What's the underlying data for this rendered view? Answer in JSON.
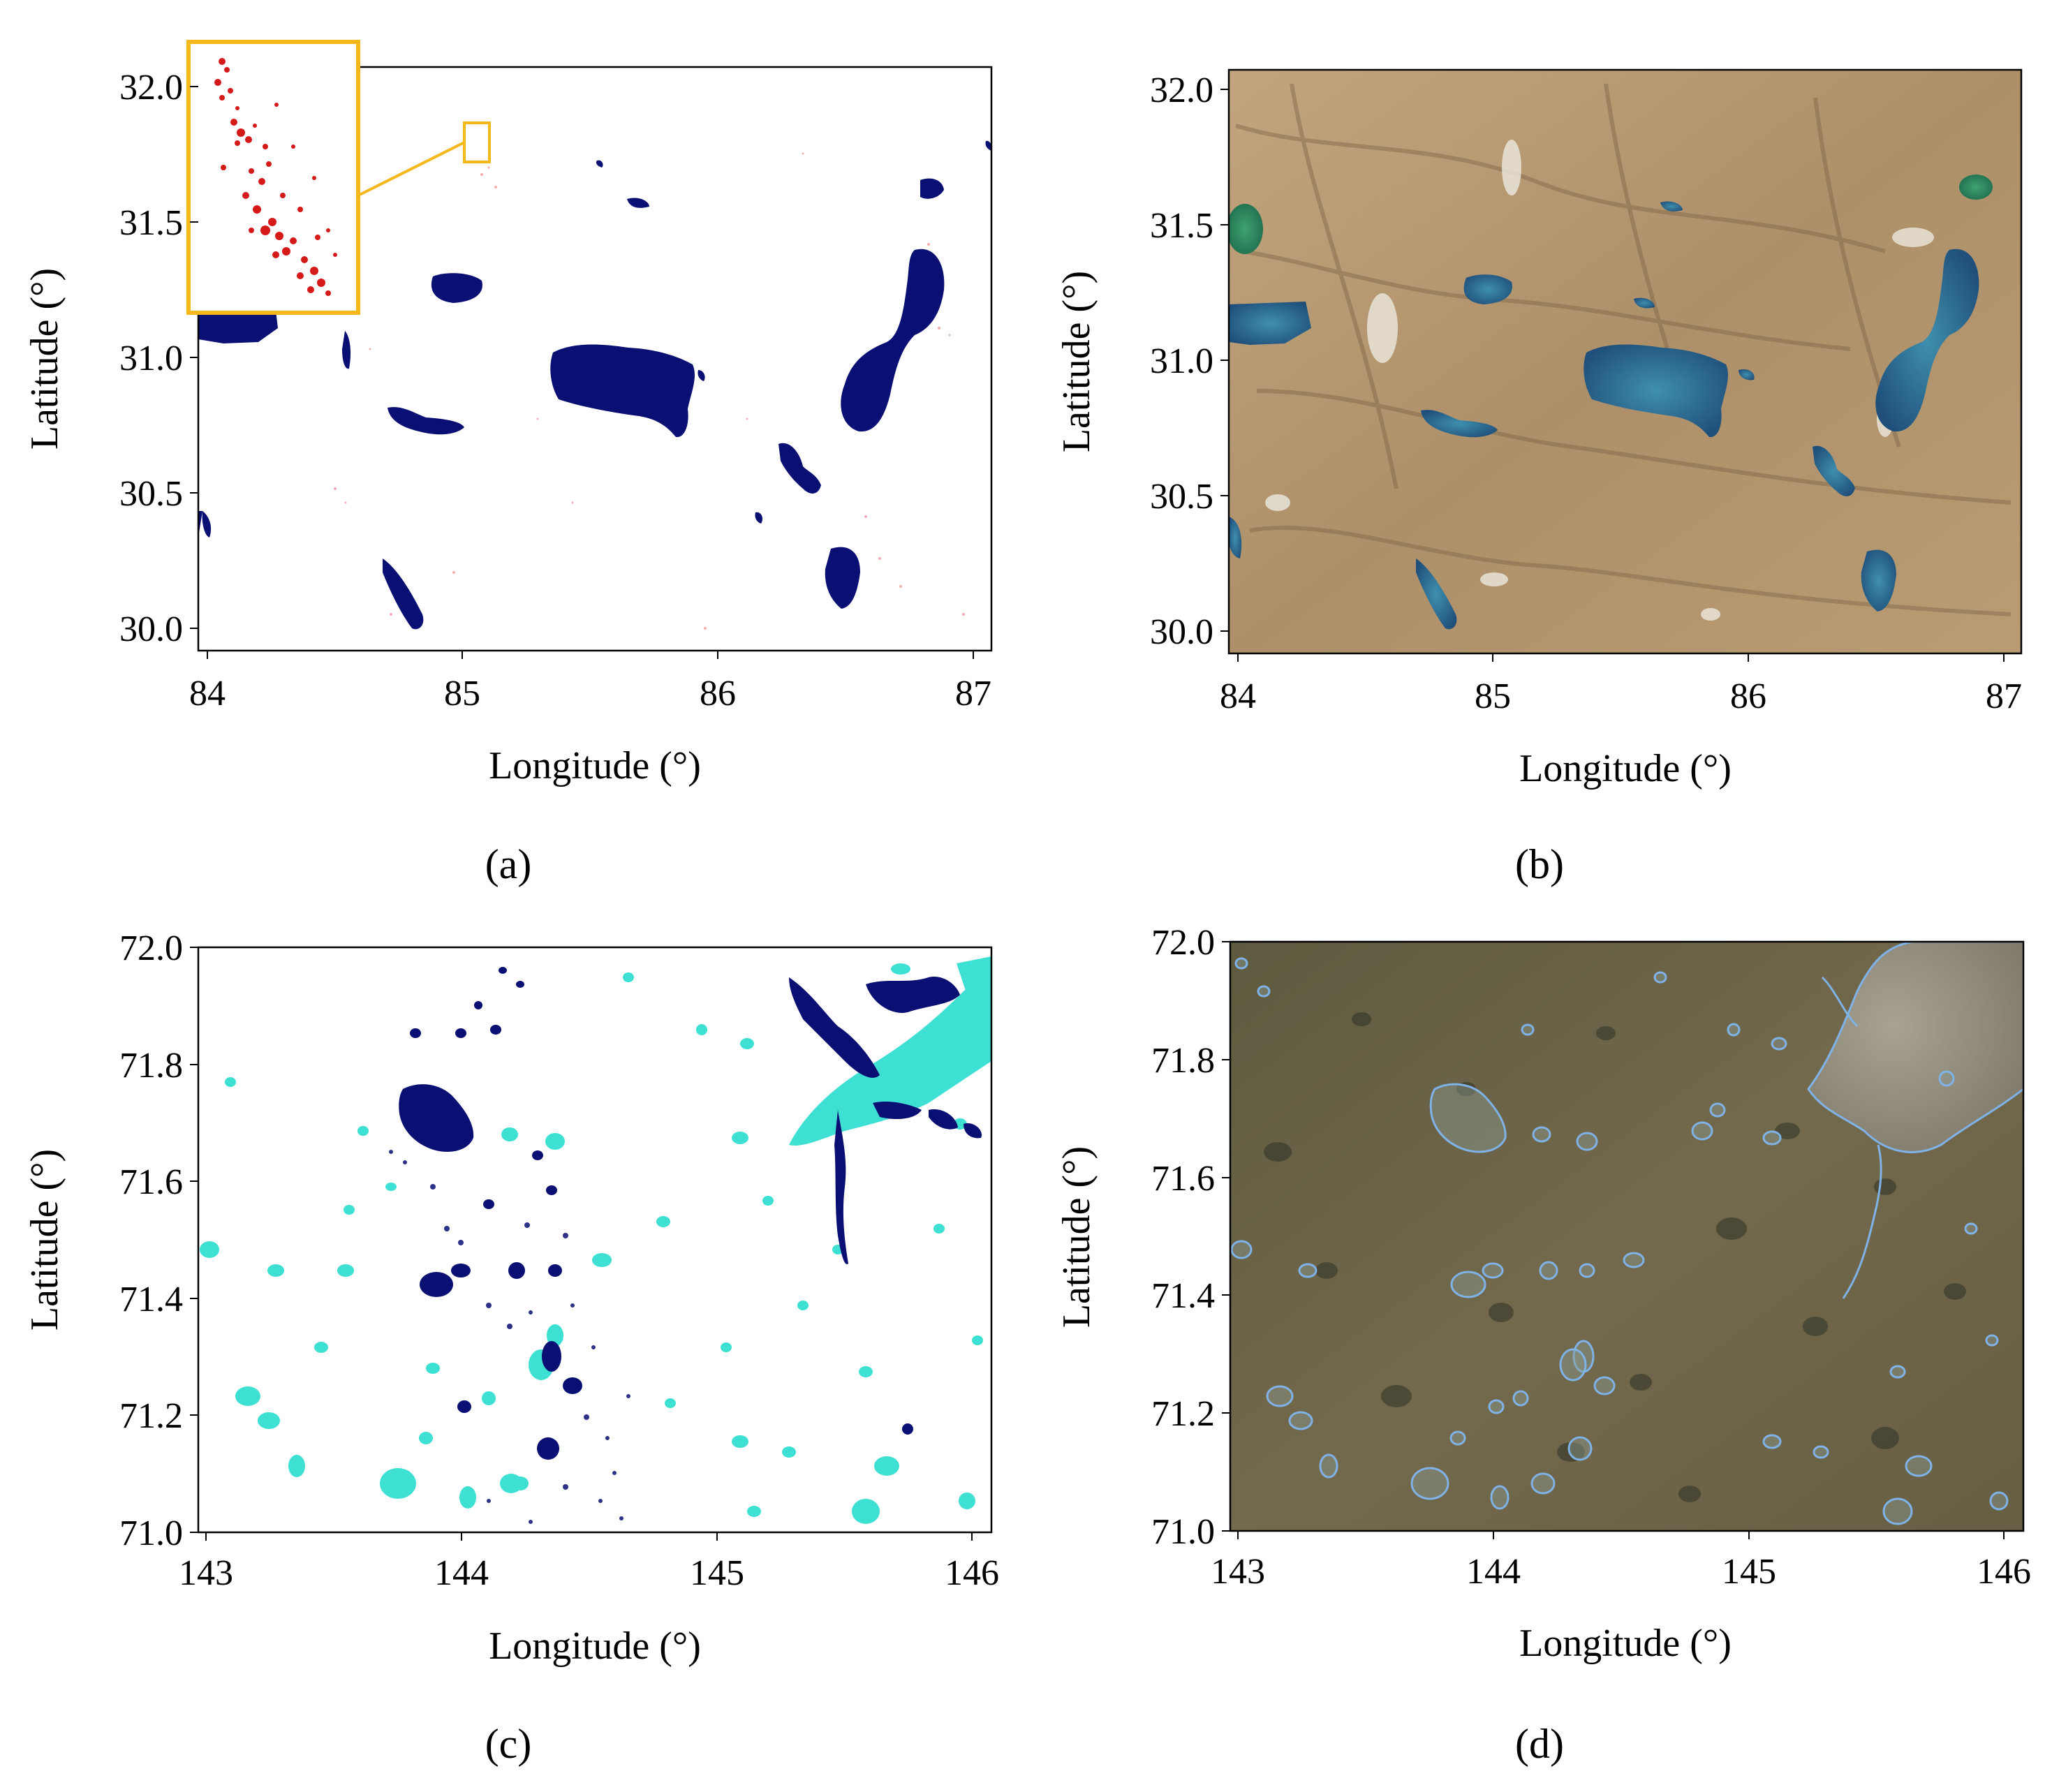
{
  "figure": {
    "panels": [
      {
        "id": "a",
        "caption": "(a)",
        "kind": "water-mask",
        "xlabel": "Longitude (°)",
        "ylabel": "Latitude (°)",
        "xlim": [
          84.0,
          87.1
        ],
        "ylim": [
          29.92,
          32.1
        ],
        "xticks": [
          "84",
          "85",
          "86",
          "87"
        ],
        "yticks": [
          "30.0",
          "30.5",
          "31.0",
          "31.5",
          "32.0"
        ],
        "inset": true
      },
      {
        "id": "b",
        "caption": "(b)",
        "kind": "satellite-image",
        "xlabel": "Longitude (°)",
        "ylabel": "Latitude (°)",
        "xlim": [
          84.0,
          87.1
        ],
        "ylim": [
          29.92,
          32.1
        ],
        "xticks": [
          "84",
          "85",
          "86",
          "87"
        ],
        "yticks": [
          "30.0",
          "30.5",
          "31.0",
          "31.5",
          "32.0"
        ]
      },
      {
        "id": "c",
        "caption": "(c)",
        "kind": "water-mask",
        "xlabel": "Longitude (°)",
        "ylabel": "Latitude (°)",
        "xlim": [
          143.0,
          146.1
        ],
        "ylim": [
          71.0,
          72.0
        ],
        "xticks": [
          "143",
          "144",
          "145",
          "146"
        ],
        "yticks": [
          "71.0",
          "71.2",
          "71.4",
          "71.6",
          "71.8",
          "72.0"
        ]
      },
      {
        "id": "d",
        "caption": "(d)",
        "kind": "satellite-image",
        "xlabel": "Longitude (°)",
        "ylabel": "Latitude (°)",
        "xlim": [
          143.0,
          146.1
        ],
        "ylim": [
          71.0,
          72.0
        ],
        "xticks": [
          "143",
          "144",
          "145",
          "146"
        ],
        "yticks": [
          "71.0",
          "71.2",
          "71.4",
          "71.6",
          "71.8",
          "72.0"
        ]
      }
    ],
    "colors": {
      "water": "#0a0f73",
      "water_alt": "#3fe0d4",
      "error": "#d61a1a",
      "inset_border": "#f5b81a",
      "plateau_land": "#b89a72",
      "arctic_land": "#6f6549",
      "outline": "#7fb2e6"
    }
  }
}
